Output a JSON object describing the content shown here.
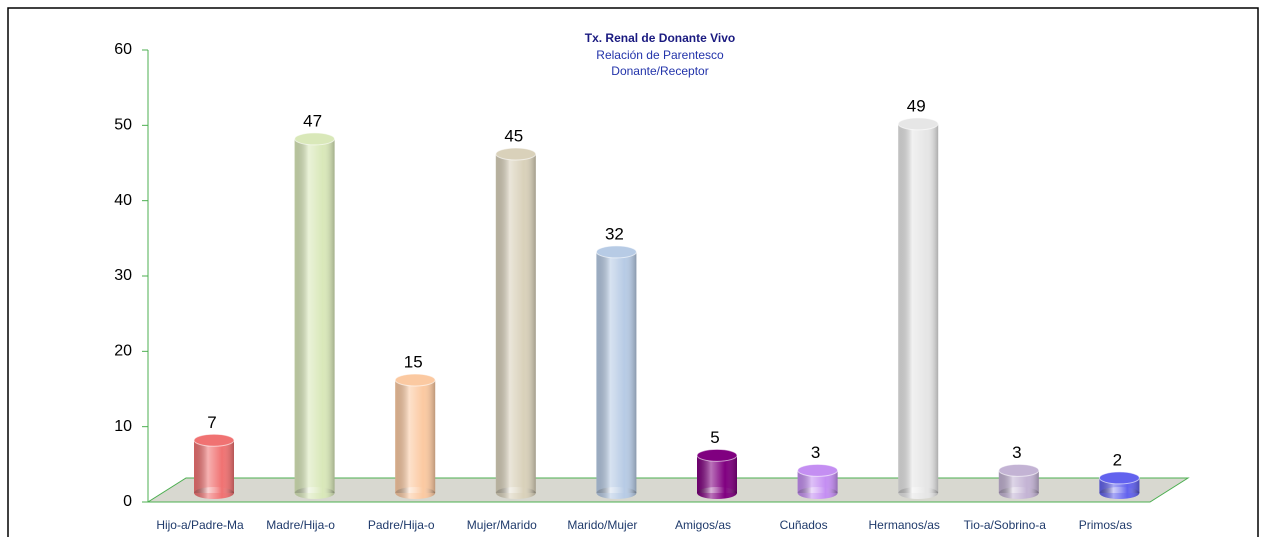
{
  "chart_data": {
    "type": "bar",
    "title": "Tx. Renal de Donante Vivo",
    "subtitle": [
      "Relación de Parentesco",
      "Donante/Receptor"
    ],
    "categories": [
      "Hijo-a/Padre-Ma",
      "Madre/Hija-o",
      "Padre/Hija-o",
      "Mujer/Marido",
      "Marido/Mujer",
      "Amigos/as",
      "Cuñados",
      "Hermanos/as",
      "Tio-a/Sobrino-a",
      "Primos/as"
    ],
    "values": [
      7,
      47,
      15,
      45,
      32,
      5,
      3,
      49,
      3,
      2
    ],
    "colors": [
      "#f07272",
      "#d9e8b9",
      "#fbc9a1",
      "#d9d1ba",
      "#b7cbe5",
      "#800080",
      "#c48ef2",
      "#e6e6e6",
      "#c3b3d4",
      "#6262ee"
    ],
    "ylim": [
      0,
      60
    ],
    "yticks": [
      0,
      10,
      20,
      30,
      40,
      50,
      60
    ],
    "grid": false
  }
}
